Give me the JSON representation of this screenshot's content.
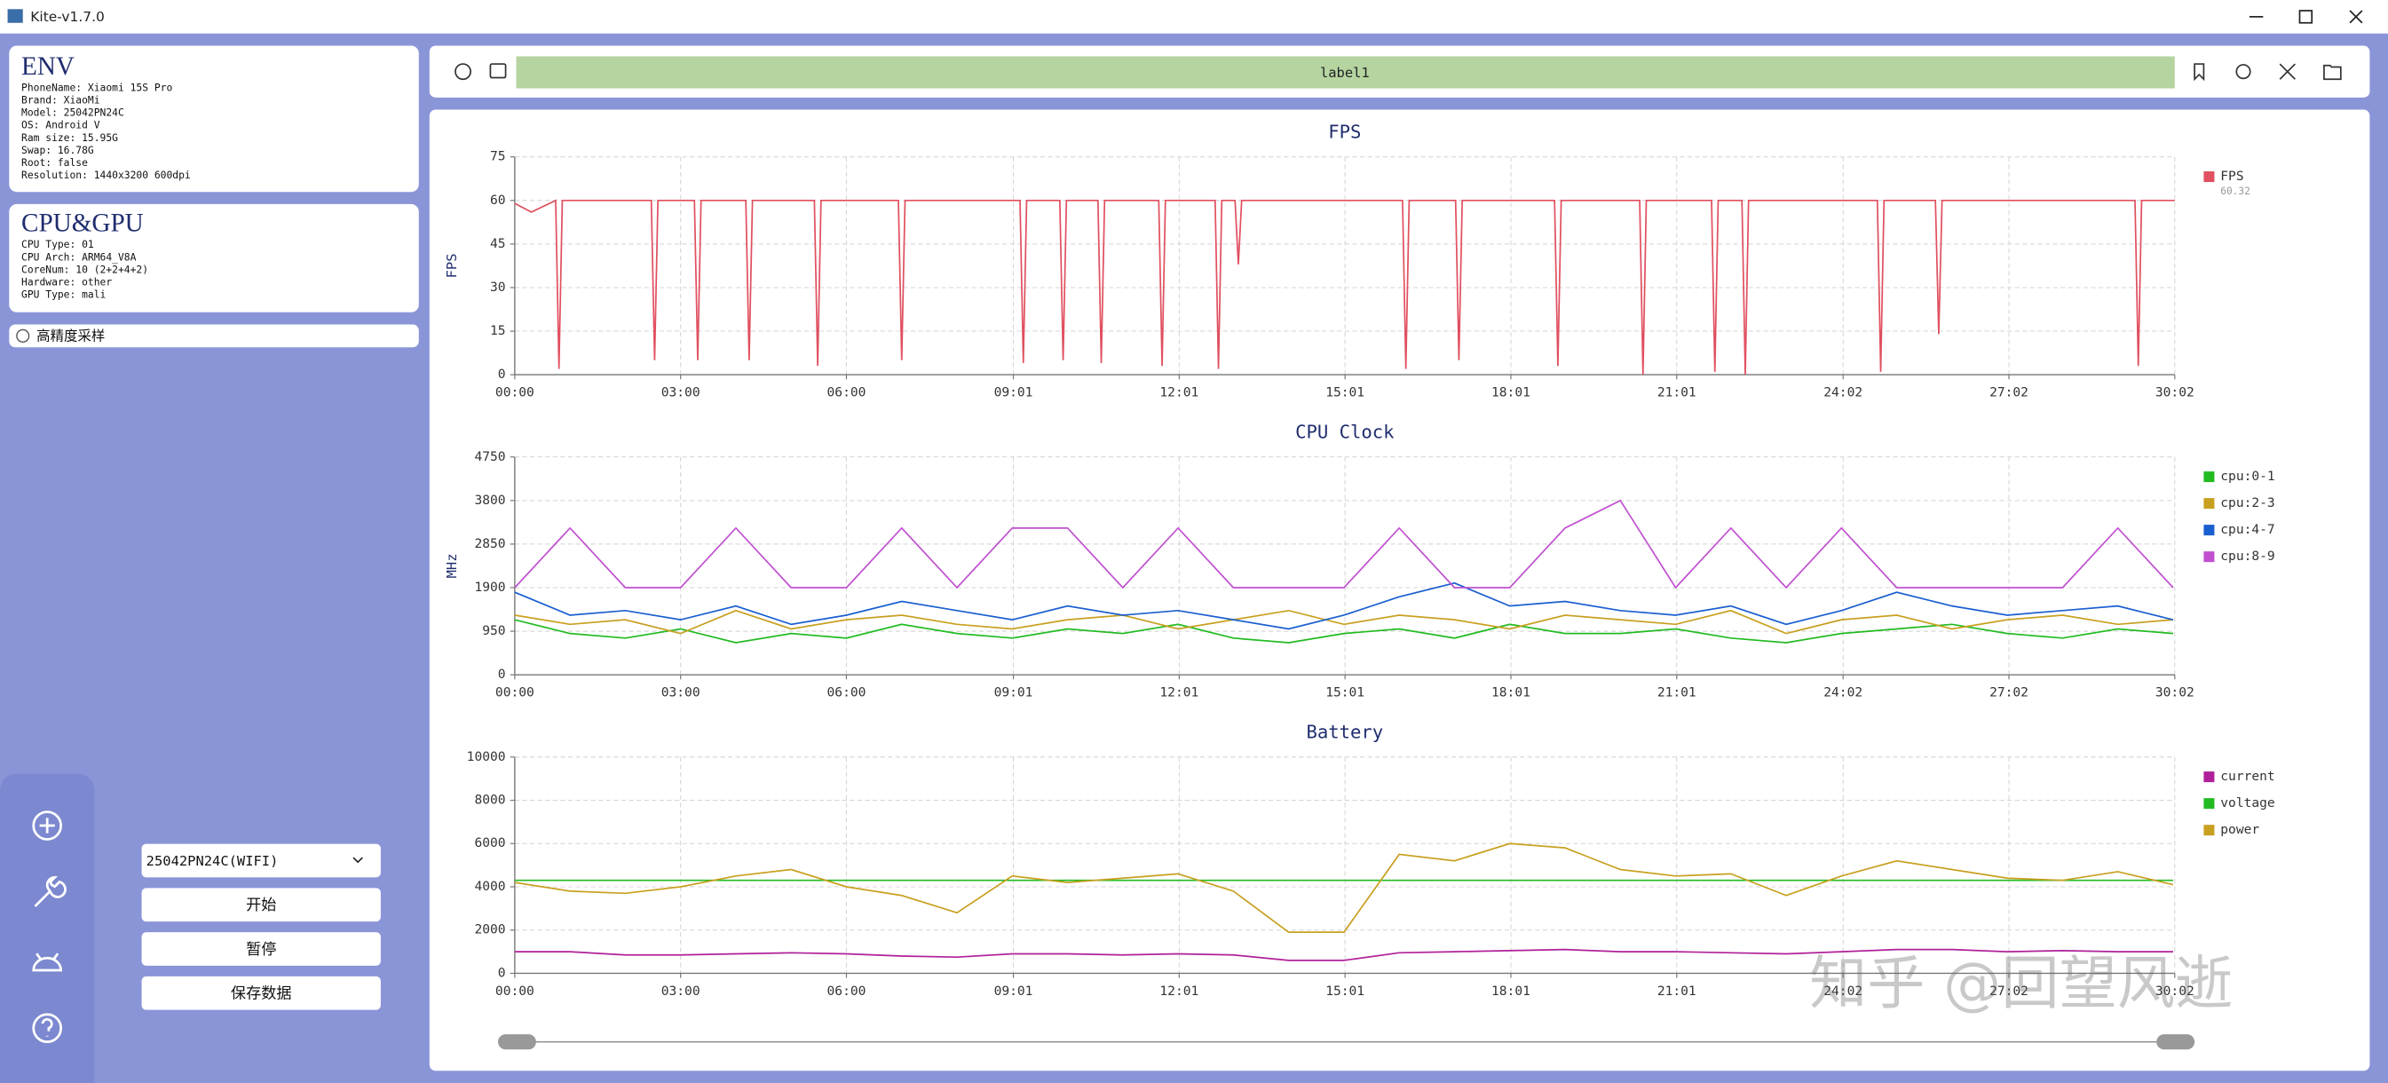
{
  "window": {
    "title": "Kite-v1.7.0"
  },
  "env": {
    "title": "ENV",
    "lines": [
      "PhoneName: Xiaomi 15S Pro",
      "Brand: XiaoMi",
      "Model: 25042PN24C",
      "OS: Android V",
      "Ram size: 15.95G",
      "Swap: 16.78G",
      "Root: false",
      "Resolution: 1440x3200 600dpi"
    ]
  },
  "cpu_gpu": {
    "title": "CPU&GPU",
    "lines": [
      "CPU Type: 01",
      "CPU Arch: ARM64_V8A",
      "CoreNum: 10 (2+2+4+2)",
      "Hardware: other",
      "GPU Type: mali"
    ]
  },
  "options": {
    "high_precision": "高精度采样"
  },
  "device": {
    "selected": "25042PN24C(WIFI)"
  },
  "buttons": [
    "开始",
    "暂停",
    "保存数据"
  ],
  "toolbar": {
    "label": "label1"
  },
  "watermark": "知乎 @回望风逝",
  "chart_data": [
    {
      "type": "line",
      "title": "FPS",
      "ylabel": "FPS",
      "grid": true,
      "x": [
        0,
        0.3,
        0.74,
        0.8,
        0.86,
        2.47,
        2.53,
        2.59,
        3.25,
        3.31,
        3.37,
        4.18,
        4.24,
        4.3,
        5.42,
        5.48,
        5.54,
        6.94,
        7.0,
        7.06,
        9.14,
        9.2,
        9.26,
        9.86,
        9.92,
        9.98,
        10.55,
        10.61,
        10.67,
        11.65,
        11.71,
        11.77,
        12.67,
        12.73,
        12.79,
        13.03,
        13.09,
        13.15,
        16.06,
        16.12,
        16.18,
        17.02,
        17.08,
        17.14,
        18.81,
        18.87,
        18.93,
        20.35,
        20.41,
        20.47,
        21.65,
        21.71,
        21.77,
        22.2,
        22.26,
        22.32,
        24.65,
        24.71,
        24.77,
        25.7,
        25.76,
        25.82,
        29.31,
        29.37,
        29.43,
        30.03
      ],
      "series": [
        {
          "name": "FPS",
          "color": "#e05060",
          "legend_value": 60.32,
          "values": [
            59,
            56,
            60,
            2,
            60,
            60,
            5,
            60,
            60,
            5,
            60,
            60,
            5,
            60,
            60,
            3,
            60,
            60,
            5,
            60,
            60,
            4,
            60,
            60,
            5,
            60,
            60,
            4,
            60,
            60,
            3,
            60,
            60,
            2,
            60,
            60,
            38,
            60,
            60,
            2,
            60,
            60,
            5,
            60,
            60,
            3,
            60,
            60,
            0,
            60,
            60,
            1,
            60,
            60,
            0,
            60,
            60,
            1,
            60,
            60,
            14,
            60,
            60,
            3,
            60,
            60
          ]
        }
      ],
      "xlim": [
        0,
        30.03
      ],
      "xticks": [
        {
          "value": 0,
          "label": "00:00"
        },
        {
          "value": 3,
          "label": "03:00"
        },
        {
          "value": 6,
          "label": "06:00"
        },
        {
          "value": 9.02,
          "label": "09:01"
        },
        {
          "value": 12.02,
          "label": "12:01"
        },
        {
          "value": 15.02,
          "label": "15:01"
        },
        {
          "value": 18.02,
          "label": "18:01"
        },
        {
          "value": 21.02,
          "label": "21:01"
        },
        {
          "value": 24.03,
          "label": "24:02"
        },
        {
          "value": 27.03,
          "label": "27:02"
        },
        {
          "value": 30.03,
          "label": "30:02"
        }
      ],
      "ylim": [
        0,
        75
      ],
      "yticks": [
        0,
        15,
        30,
        45,
        60,
        75
      ]
    },
    {
      "type": "line",
      "title": "CPU Clock",
      "ylabel": "MHz",
      "grid": true,
      "x": [
        0,
        1,
        2,
        3,
        4,
        5,
        6,
        7,
        8,
        9,
        10,
        11,
        12,
        13,
        14,
        15,
        16,
        17,
        18,
        19,
        20,
        21,
        22,
        23,
        24,
        25,
        26,
        27,
        28,
        29,
        30
      ],
      "series": [
        {
          "name": "cpu:0-1",
          "color": "#22bb22",
          "values": [
            1200,
            900,
            800,
            1000,
            700,
            900,
            800,
            1100,
            900,
            800,
            1000,
            900,
            1100,
            800,
            700,
            900,
            1000,
            800,
            1100,
            900,
            900,
            1000,
            800,
            700,
            900,
            1000,
            1100,
            900,
            800,
            1000,
            900
          ]
        },
        {
          "name": "cpu:2-3",
          "color": "#c8a020",
          "values": [
            1300,
            1100,
            1200,
            900,
            1400,
            1000,
            1200,
            1300,
            1100,
            1000,
            1200,
            1300,
            1000,
            1200,
            1400,
            1100,
            1300,
            1200,
            1000,
            1300,
            1200,
            1100,
            1400,
            900,
            1200,
            1300,
            1000,
            1200,
            1300,
            1100,
            1200
          ]
        },
        {
          "name": "cpu:4-7",
          "color": "#1a5fd0",
          "values": [
            1800,
            1300,
            1400,
            1200,
            1500,
            1100,
            1300,
            1600,
            1400,
            1200,
            1500,
            1300,
            1400,
            1200,
            1000,
            1300,
            1700,
            2000,
            1500,
            1600,
            1400,
            1300,
            1500,
            1100,
            1400,
            1800,
            1500,
            1300,
            1400,
            1500,
            1200
          ]
        },
        {
          "name": "cpu:8-9",
          "color": "#c050d0",
          "values": [
            1900,
            3200,
            1900,
            1900,
            3200,
            1900,
            1900,
            3200,
            1900,
            3200,
            3200,
            1900,
            3200,
            1900,
            1900,
            1900,
            3200,
            1900,
            1900,
            3200,
            3800,
            1900,
            3200,
            1900,
            3200,
            1900,
            1900,
            1900,
            1900,
            3200,
            1900
          ]
        }
      ],
      "xlim": [
        0,
        30.03
      ],
      "xticks": [
        {
          "value": 0,
          "label": "00:00"
        },
        {
          "value": 3,
          "label": "03:00"
        },
        {
          "value": 6,
          "label": "06:00"
        },
        {
          "value": 9.02,
          "label": "09:01"
        },
        {
          "value": 12.02,
          "label": "12:01"
        },
        {
          "value": 15.02,
          "label": "15:01"
        },
        {
          "value": 18.02,
          "label": "18:01"
        },
        {
          "value": 21.02,
          "label": "21:01"
        },
        {
          "value": 24.03,
          "label": "24:02"
        },
        {
          "value": 27.03,
          "label": "27:02"
        },
        {
          "value": 30.03,
          "label": "30:02"
        }
      ],
      "ylim": [
        0,
        4750
      ],
      "yticks": [
        0,
        950,
        1900,
        2850,
        3800,
        4750
      ]
    },
    {
      "type": "line",
      "title": "Battery",
      "grid": true,
      "x": [
        0,
        1,
        2,
        3,
        4,
        5,
        6,
        7,
        8,
        9,
        10,
        11,
        12,
        13,
        14,
        15,
        16,
        17,
        18,
        19,
        20,
        21,
        22,
        23,
        24,
        25,
        26,
        27,
        28,
        29,
        30
      ],
      "series": [
        {
          "name": "current",
          "color": "#b0209a",
          "values": [
            1000,
            1000,
            850,
            850,
            900,
            950,
            900,
            800,
            750,
            900,
            900,
            850,
            900,
            850,
            600,
            600,
            950,
            1000,
            1050,
            1100,
            1000,
            1000,
            950,
            900,
            1000,
            1100,
            1100,
            1000,
            1050,
            1000,
            1000
          ]
        },
        {
          "name": "voltage",
          "color": "#22bb22",
          "values": [
            4300,
            4300,
            4300,
            4300,
            4300,
            4300,
            4300,
            4300,
            4300,
            4300,
            4300,
            4300,
            4300,
            4300,
            4300,
            4300,
            4300,
            4300,
            4300,
            4300,
            4300,
            4300,
            4300,
            4300,
            4300,
            4300,
            4300,
            4300,
            4300,
            4300,
            4300
          ]
        },
        {
          "name": "power",
          "color": "#c8a020",
          "values": [
            4200,
            3800,
            3700,
            4000,
            4500,
            4800,
            4000,
            3600,
            2800,
            4500,
            4200,
            4400,
            4600,
            3800,
            1900,
            1900,
            5500,
            5200,
            6000,
            5800,
            4800,
            4500,
            4600,
            3600,
            4500,
            5200,
            4800,
            4400,
            4300,
            4700,
            4100
          ]
        }
      ],
      "xlim": [
        0,
        30.03
      ],
      "xticks": [
        {
          "value": 0,
          "label": "00:00"
        },
        {
          "value": 3,
          "label": "03:00"
        },
        {
          "value": 6,
          "label": "06:00"
        },
        {
          "value": 9.02,
          "label": "09:01"
        },
        {
          "value": 12.02,
          "label": "12:01"
        },
        {
          "value": 15.02,
          "label": "15:01"
        },
        {
          "value": 18.02,
          "label": "18:01"
        },
        {
          "value": 21.02,
          "label": "21:01"
        },
        {
          "value": 24.03,
          "label": "24:02"
        },
        {
          "value": 27.03,
          "label": "27:02"
        },
        {
          "value": 30.03,
          "label": "30:02"
        }
      ],
      "ylim": [
        0,
        10000
      ],
      "yticks": [
        0,
        2000,
        4000,
        6000,
        8000,
        10000
      ]
    }
  ]
}
